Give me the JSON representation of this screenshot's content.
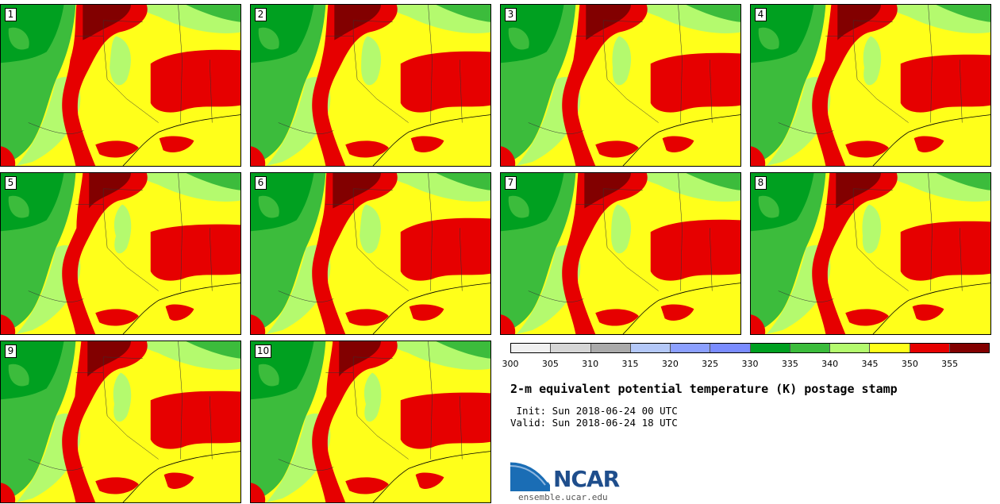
{
  "panels": [
    {
      "label": "1"
    },
    {
      "label": "2"
    },
    {
      "label": "3"
    },
    {
      "label": "4"
    },
    {
      "label": "5"
    },
    {
      "label": "6"
    },
    {
      "label": "7"
    },
    {
      "label": "8"
    },
    {
      "label": "9"
    },
    {
      "label": "10"
    }
  ],
  "colorbar": {
    "colors": [
      "#f0f0f0",
      "#d6d6d6",
      "#aaaaaa",
      "#b4c8f8",
      "#8ca0ff",
      "#7a8cff",
      "#00a020",
      "#3cbc3c",
      "#b4fa6e",
      "#ffff1a",
      "#e60000",
      "#820000"
    ],
    "ticks": [
      "300",
      "305",
      "310",
      "315",
      "320",
      "325",
      "330",
      "335",
      "340",
      "345",
      "350",
      "355"
    ]
  },
  "title": "2-m equivalent potential temperature (K) postage stamp",
  "init": " Init: Sun 2018-06-24 00 UTC",
  "valid": "Valid: Sun 2018-06-24 18 UTC",
  "logo": {
    "text": "NCAR",
    "site": "ensemble.ucar.edu"
  }
}
